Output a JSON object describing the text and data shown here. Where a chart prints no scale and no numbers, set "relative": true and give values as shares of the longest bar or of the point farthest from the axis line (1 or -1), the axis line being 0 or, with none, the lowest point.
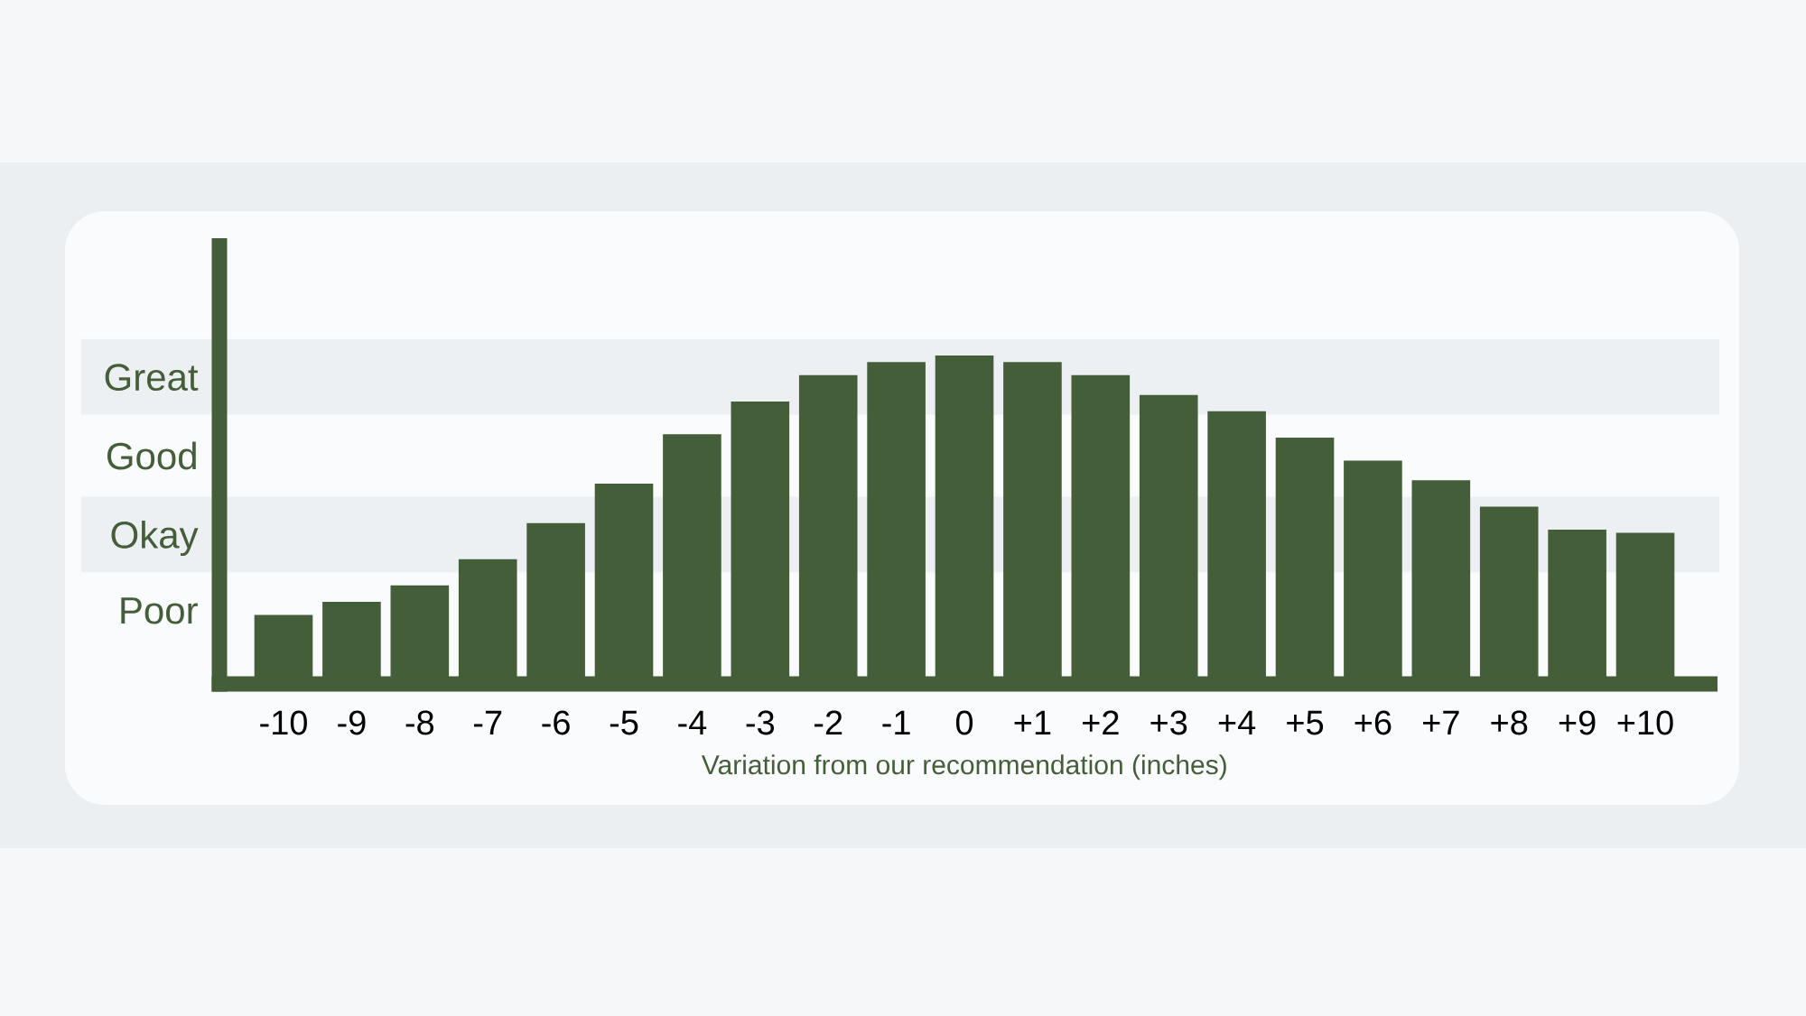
{
  "chart_data": {
    "type": "bar",
    "categories": [
      "-10",
      "-9",
      "-8",
      "-7",
      "-6",
      "-5",
      "-4",
      "-3",
      "-2",
      "-1",
      "0",
      "+1",
      "+2",
      "+3",
      "+4",
      "+5",
      "+6",
      "+7",
      "+8",
      "+9",
      "+10"
    ],
    "values": [
      0.21,
      0.25,
      0.3,
      0.38,
      0.49,
      0.61,
      0.76,
      0.86,
      0.94,
      0.98,
      1,
      0.98,
      0.94,
      0.88,
      0.83,
      0.75,
      0.68,
      0.62,
      0.54,
      0.47,
      0.46
    ],
    "relative": true,
    "color": "#445e39",
    "xlabel": "Variation from our recommendation (inches)",
    "bands": [
      {
        "axis": "y",
        "from": 0.34,
        "to": 0.57,
        "label": "Okay",
        "color": "#edf0f3"
      },
      {
        "axis": "y",
        "from": 0.82,
        "to": 1.05,
        "label": "Great",
        "color": "#edf0f3"
      }
    ],
    "annotations": [
      "Poor",
      "Good"
    ]
  }
}
